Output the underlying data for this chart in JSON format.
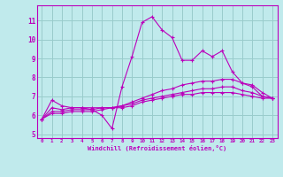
{
  "xlabel": "Windchill (Refroidissement éolien,°C)",
  "ylabel": "",
  "xlim": [
    -0.5,
    23.5
  ],
  "ylim": [
    4.8,
    11.8
  ],
  "yticks": [
    5,
    6,
    7,
    8,
    9,
    10,
    11
  ],
  "xticks": [
    0,
    1,
    2,
    3,
    4,
    5,
    6,
    7,
    8,
    9,
    10,
    11,
    12,
    13,
    14,
    15,
    16,
    17,
    18,
    19,
    20,
    21,
    22,
    23
  ],
  "bg_color": "#c0eaec",
  "line_color": "#bb00bb",
  "grid_color": "#99cccc",
  "series": [
    [
      5.8,
      6.8,
      6.5,
      6.4,
      6.4,
      6.3,
      6.0,
      5.3,
      7.5,
      9.1,
      10.9,
      11.2,
      10.5,
      10.1,
      8.9,
      8.9,
      9.4,
      9.1,
      9.4,
      8.3,
      7.7,
      7.5,
      7.0,
      6.9
    ],
    [
      5.8,
      6.4,
      6.3,
      6.4,
      6.4,
      6.4,
      6.4,
      6.4,
      6.5,
      6.7,
      6.9,
      7.1,
      7.3,
      7.4,
      7.6,
      7.7,
      7.8,
      7.8,
      7.9,
      7.9,
      7.7,
      7.6,
      7.2,
      6.9
    ],
    [
      5.8,
      6.2,
      6.2,
      6.3,
      6.3,
      6.3,
      6.4,
      6.4,
      6.5,
      6.6,
      6.8,
      6.9,
      7.0,
      7.1,
      7.2,
      7.3,
      7.4,
      7.4,
      7.5,
      7.5,
      7.3,
      7.2,
      7.0,
      6.9
    ],
    [
      5.8,
      6.1,
      6.1,
      6.2,
      6.2,
      6.2,
      6.3,
      6.4,
      6.4,
      6.5,
      6.7,
      6.8,
      6.9,
      7.0,
      7.1,
      7.1,
      7.2,
      7.2,
      7.2,
      7.2,
      7.1,
      7.0,
      6.9,
      6.9
    ]
  ]
}
